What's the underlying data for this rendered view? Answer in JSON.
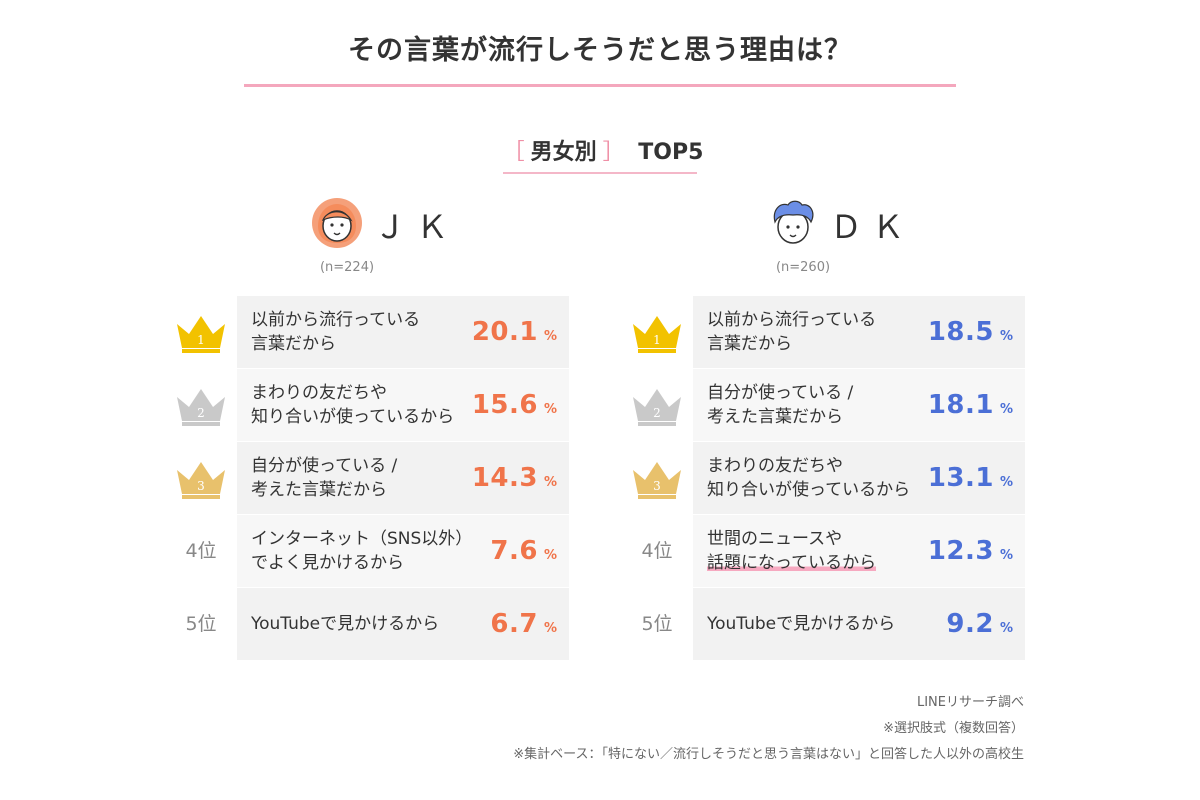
{
  "title": "その言葉が流行しそうだと思う理由は？",
  "subtitle": {
    "open_bracket": "［",
    "label": "男女別",
    "close_bracket": "］",
    "suffix": "TOP5"
  },
  "colors": {
    "jk_accent": "#f0744a",
    "dk_accent": "#4b6fd6",
    "gold": "#f2c200",
    "silver": "#c9c9c9",
    "bronze": "#e8c16c",
    "pink_rule": "#f4a7bd"
  },
  "chart_data": [
    {
      "type": "table",
      "group": "ＪＫ",
      "n_label": "(n=224)",
      "unit": "%",
      "rows": [
        {
          "rank": 1,
          "rank_label": "1",
          "reason": "以前から流行っている\n言葉だから",
          "value": "20.1",
          "highlight": false
        },
        {
          "rank": 2,
          "rank_label": "2",
          "reason": "まわりの友だちや\n知り合いが使っているから",
          "value": "15.6",
          "highlight": false
        },
        {
          "rank": 3,
          "rank_label": "3",
          "reason": "自分が使っている /\n考えた言葉だから",
          "value": "14.3",
          "highlight": false
        },
        {
          "rank": 4,
          "rank_label": "4位",
          "reason": "インターネット（SNS以外）\nでよく見かけるから",
          "value": "7.6",
          "highlight": false
        },
        {
          "rank": 5,
          "rank_label": "5位",
          "reason": "YouTubeで見かけるから",
          "value": "6.7",
          "highlight": false
        }
      ]
    },
    {
      "type": "table",
      "group": "ＤＫ",
      "n_label": "(n=260)",
      "unit": "%",
      "rows": [
        {
          "rank": 1,
          "rank_label": "1",
          "reason": "以前から流行っている\n言葉だから",
          "value": "18.5",
          "highlight": false
        },
        {
          "rank": 2,
          "rank_label": "2",
          "reason": "自分が使っている /\n考えた言葉だから",
          "value": "18.1",
          "highlight": false
        },
        {
          "rank": 3,
          "rank_label": "3",
          "reason": "まわりの友だちや\n知り合いが使っているから",
          "value": "13.1",
          "highlight": false
        },
        {
          "rank": 4,
          "rank_label": "4位",
          "reason": "世間のニュースや\n話題になっているから",
          "value": "12.3",
          "highlight": true
        },
        {
          "rank": 5,
          "rank_label": "5位",
          "reason": "YouTubeで見かけるから",
          "value": "9.2",
          "highlight": false
        }
      ]
    }
  ],
  "notes": [
    "LINEリサーチ調べ",
    "※選択肢式（複数回答）",
    "※集計ベース：「特にない／流行しそうだと思う言葉はない」と回答した人以外の高校生"
  ]
}
